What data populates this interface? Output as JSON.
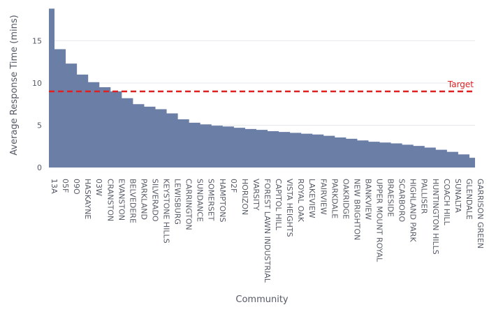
{
  "chart_data": {
    "type": "area",
    "title": "",
    "xlabel": "Community",
    "ylabel": "Average Response Time (mins)",
    "ylim": [
      0,
      19
    ],
    "yticks": [
      0,
      5,
      10,
      15
    ],
    "grid": true,
    "colors": {
      "area": "#6a7ea6",
      "target_line": "#e02020",
      "grid": "#e6e8ec",
      "text": "#555a66"
    },
    "target": {
      "label": "Target",
      "value": 9.0
    },
    "x_labels": [
      "13A",
      "05F",
      "09O",
      "HASKAYNE",
      "03W",
      "CRANSTON",
      "EVANSTON",
      "BELVEDERE",
      "PARKLAND",
      "SILVERADO",
      "KEYSTONE HILLS",
      "LEWISBURG",
      "CARRINGTON",
      "SUNDANCE",
      "SOMERSET",
      "HAMPTONS",
      "02F",
      "HORIZON",
      "VARSITY",
      "FOREST LAWN INDUSTRIAL",
      "CAPITOL HILL",
      "VISTA HEIGHTS",
      "ROYAL OAK",
      "LAKEVIEW",
      "FAIRVIEW",
      "PARKDALE",
      "OAKRIDGE",
      "NEW BRIGHTON",
      "BANKVIEW",
      "UPPER MOUNT ROYAL",
      "BRAESIDE",
      "SCARBORO",
      "HIGHLAND PARK",
      "PALLISER",
      "HUNTINGTON HILLS",
      "COACH HILL",
      "SUNALTA",
      "GLENDALE",
      "GARRISON GREEN"
    ],
    "values": [
      18.8,
      14.0,
      12.3,
      11.0,
      10.1,
      9.5,
      9.0,
      8.2,
      7.5,
      7.2,
      6.9,
      6.4,
      5.7,
      5.3,
      5.1,
      4.95,
      4.85,
      4.7,
      4.55,
      4.45,
      4.3,
      4.2,
      4.1,
      4.0,
      3.9,
      3.75,
      3.55,
      3.4,
      3.2,
      3.05,
      2.95,
      2.85,
      2.7,
      2.55,
      2.35,
      2.1,
      1.85,
      1.55,
      1.15
    ]
  }
}
